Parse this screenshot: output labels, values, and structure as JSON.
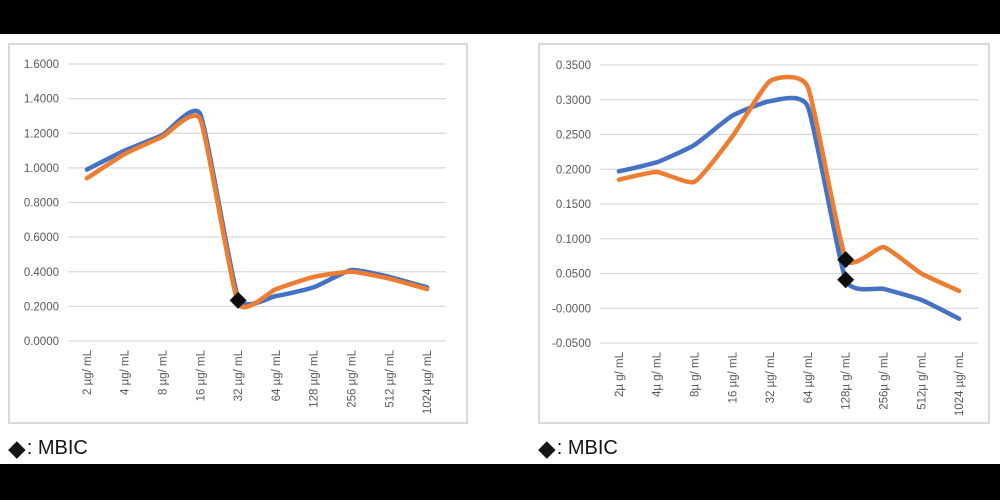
{
  "page": {
    "background": "#ffffff",
    "top_bar_color": "#000000",
    "bottom_bar_color": "#000000",
    "chart_border_color": "#d9d9d9"
  },
  "chart_data": [
    {
      "type": "line",
      "title": "",
      "xlabel": "",
      "ylabel": "",
      "categories": [
        "2 µg/ mL",
        "4 µg/ mL",
        "8 µg/ mL",
        "16 µg/ mL",
        "32 µg/ mL",
        "64 µg/ mL",
        "128 µg/ mL",
        "256 µg/ mL",
        "512 µg/ mL",
        "1024 µg/ mL"
      ],
      "series": [
        {
          "name": "blue",
          "color": "#4472C4",
          "values": [
            0.99,
            1.1,
            1.19,
            1.31,
            0.25,
            0.26,
            0.31,
            0.41,
            0.37,
            0.31
          ]
        },
        {
          "name": "orange",
          "color": "#ED7D31",
          "values": [
            0.94,
            1.08,
            1.18,
            1.28,
            0.22,
            0.3,
            0.37,
            0.4,
            0.36,
            0.3
          ]
        }
      ],
      "mbic_markers": [
        {
          "category_index": 4,
          "value": 0.235
        }
      ],
      "marker_color": "#0d0d0d",
      "ylim": [
        0.0,
        1.6
      ],
      "ytick_step": 0.2,
      "ytick_decimals": 4,
      "grid": true,
      "gridline_color": "#d9d9d9",
      "tick_label_color": "#595959",
      "xtick_rotation": 90,
      "legend_position": "none",
      "caption": {
        "marker": "◆",
        "text": ": MBIC"
      }
    },
    {
      "type": "line",
      "title": "",
      "xlabel": "",
      "ylabel": "",
      "categories": [
        "2µ g/ mL",
        "4µ g/ mL",
        "8µ g/ mL",
        "16 µg/ mL",
        "32 µg/ mL",
        "64 µg/ mL",
        "128µ g/ mL",
        "256µ g/ mL",
        "512µ g/ mL",
        "1024 µg/ mL"
      ],
      "series": [
        {
          "name": "blue",
          "color": "#4472C4",
          "values": [
            0.197,
            0.21,
            0.235,
            0.277,
            0.298,
            0.29,
            0.041,
            0.028,
            0.012,
            -0.015
          ]
        },
        {
          "name": "orange",
          "color": "#ED7D31",
          "values": [
            0.185,
            0.196,
            0.182,
            0.247,
            0.327,
            0.318,
            0.071,
            0.088,
            0.05,
            0.025
          ]
        }
      ],
      "mbic_markers": [
        {
          "category_index": 6,
          "value": 0.07
        },
        {
          "category_index": 6,
          "value": 0.041
        }
      ],
      "marker_color": "#0d0d0d",
      "ylim": [
        -0.05,
        0.35
      ],
      "ytick_step": 0.05,
      "ytick_decimals": 4,
      "grid": true,
      "gridline_color": "#d9d9d9",
      "tick_label_color": "#595959",
      "xtick_rotation": 90,
      "legend_position": "none",
      "caption": {
        "marker": "◆",
        "text": ": MBIC"
      }
    }
  ]
}
